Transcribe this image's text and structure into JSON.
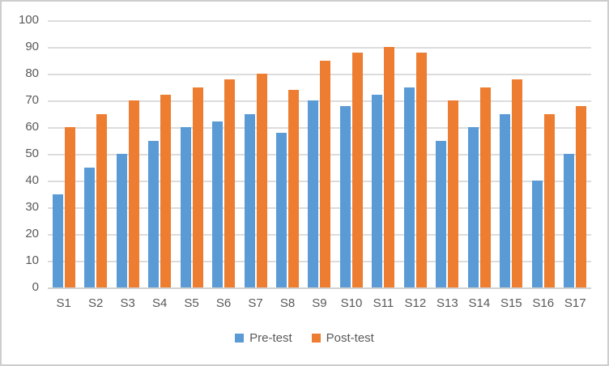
{
  "chart_data": {
    "type": "bar",
    "title": "",
    "xlabel": "",
    "ylabel": "",
    "categories": [
      "S1",
      "S2",
      "S3",
      "S4",
      "S5",
      "S6",
      "S7",
      "S8",
      "S9",
      "S10",
      "S11",
      "S12",
      "S13",
      "S14",
      "S15",
      "S16",
      "S17"
    ],
    "series": [
      {
        "name": "Pre-test",
        "color": "#5B9BD5",
        "values": [
          35,
          45,
          50,
          55,
          60,
          62,
          65,
          58,
          70,
          68,
          72,
          75,
          55,
          60,
          65,
          40,
          50
        ]
      },
      {
        "name": "Post-test",
        "color": "#ED7D31",
        "values": [
          60,
          65,
          70,
          72,
          75,
          78,
          80,
          74,
          85,
          88,
          90,
          88,
          70,
          75,
          78,
          65,
          68
        ]
      }
    ],
    "ylim": [
      0,
      100
    ],
    "yticks": [
      0,
      10,
      20,
      30,
      40,
      50,
      60,
      70,
      80,
      90,
      100
    ],
    "grid": true,
    "legend_position": "bottom"
  },
  "colors": {
    "gridline": "#dcdcdc",
    "axis_line": "#d2d2d2",
    "axis_text": "#595959",
    "frame_border": "#cdcdcd",
    "background": "#ffffff"
  }
}
